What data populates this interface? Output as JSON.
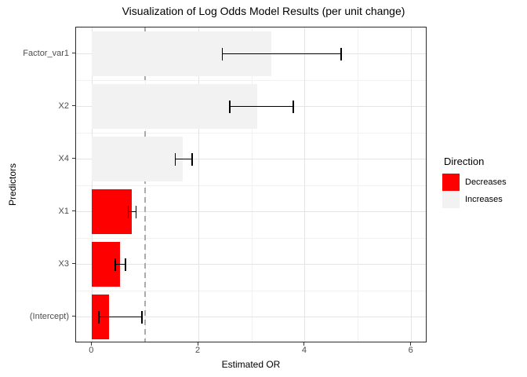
{
  "chart_data": {
    "type": "bar",
    "orientation": "horizontal",
    "title": "Visualization of Log Odds Model Results (per unit change)",
    "xlabel": "Estimated OR",
    "ylabel": "Predictors",
    "x_ticks": [
      0,
      2,
      4,
      6
    ],
    "x_minor_ticks": [
      1,
      3,
      5
    ],
    "xlim": [
      -0.3,
      6.3
    ],
    "grid": "on",
    "reference_line": {
      "x": 1,
      "style": "dashed",
      "color": "#ababab"
    },
    "categories": [
      "Factor_var1",
      "X2",
      "X4",
      "X1",
      "X3",
      "(Intercept)"
    ],
    "series": [
      {
        "name": "Estimated OR",
        "values": [
          3.37,
          3.1,
          1.7,
          0.74,
          0.53,
          0.32
        ]
      },
      {
        "name": "CI lower",
        "values": [
          2.45,
          2.59,
          1.56,
          0.68,
          0.44,
          0.13
        ]
      },
      {
        "name": "CI upper",
        "values": [
          4.68,
          3.78,
          1.88,
          0.83,
          0.63,
          0.94
        ]
      }
    ],
    "direction": [
      "Increases",
      "Increases",
      "Increases",
      "Decreases",
      "Decreases",
      "Decreases"
    ],
    "colors": {
      "Decreases": "#ff0000",
      "Increases": "#f2f2f2"
    },
    "legend": {
      "title": "Direction",
      "position": "right",
      "items": [
        {
          "label": "Decreases",
          "color": "#ff0000"
        },
        {
          "label": "Increases",
          "color": "#f2f2f2"
        }
      ]
    }
  }
}
